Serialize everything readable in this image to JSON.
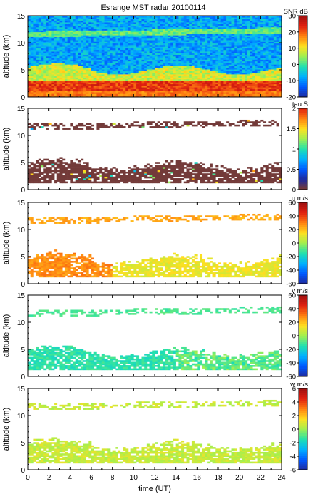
{
  "chart_data": {
    "type": "heatmap",
    "title": "Esrange MST radar 20100114",
    "xlabel": "time (UT)",
    "x_range": [
      0,
      24
    ],
    "x_ticks": [
      "0",
      "2",
      "4",
      "6",
      "8",
      "10",
      "12",
      "14",
      "16",
      "18",
      "20",
      "22",
      "24"
    ],
    "panels": [
      {
        "ylabel": "altitude (km)",
        "y_range": [
          0,
          15
        ],
        "y_ticks": [
          "0",
          "5",
          "10",
          "15"
        ],
        "colorbar_label": "SNR dB",
        "colorbar_range": [
          -20,
          30
        ],
        "colorbar_ticks": [
          "-20",
          "-10",
          "0",
          "10",
          "20",
          "30"
        ],
        "colorscale": [
          "#1f2a9c",
          "#0057ff",
          "#00b0ff",
          "#20e0b0",
          "#a0f050",
          "#ffe020",
          "#ff8010",
          "#e02010",
          "#a01010"
        ],
        "pattern": "snr"
      },
      {
        "ylabel": "altitude (km)",
        "y_range": [
          0,
          15
        ],
        "y_ticks": [
          "0",
          "5",
          "10",
          "15"
        ],
        "colorbar_label": "tau S",
        "colorbar_range": [
          0,
          2
        ],
        "colorbar_ticks": [
          "0",
          "0.5",
          "1",
          "1.5",
          "2"
        ],
        "colorscale": [
          "#7a3b30",
          "#1f2a9c",
          "#0057ff",
          "#00b0ff",
          "#20e0b0",
          "#a0f050",
          "#ffe020",
          "#ff8010",
          "#e02010"
        ],
        "pattern": "tau"
      },
      {
        "ylabel": "altitude (km)",
        "y_range": [
          0,
          15
        ],
        "y_ticks": [
          "0",
          "5",
          "10",
          "15"
        ],
        "colorbar_label": "u m/s",
        "colorbar_range": [
          -60,
          60
        ],
        "colorbar_ticks": [
          "-60",
          "-40",
          "-20",
          "0",
          "20",
          "40",
          "60"
        ],
        "colorscale": [
          "#1f2a9c",
          "#0057ff",
          "#00b0ff",
          "#20e0b0",
          "#a0f050",
          "#ffe020",
          "#ff8010",
          "#e02010",
          "#a01010"
        ],
        "pattern": "u"
      },
      {
        "ylabel": "altitude (km)",
        "y_range": [
          0,
          15
        ],
        "y_ticks": [
          "0",
          "5",
          "10",
          "15"
        ],
        "colorbar_label": "v m/s",
        "colorbar_range": [
          -60,
          60
        ],
        "colorbar_ticks": [
          "-60",
          "-40",
          "-20",
          "0",
          "20",
          "40",
          "60"
        ],
        "colorscale": [
          "#1f2a9c",
          "#0057ff",
          "#00b0ff",
          "#20e0b0",
          "#a0f050",
          "#ffe020",
          "#ff8010",
          "#e02010",
          "#a01010"
        ],
        "pattern": "v"
      },
      {
        "ylabel": "altitude (km)",
        "y_range": [
          0,
          15
        ],
        "y_ticks": [
          "0",
          "5",
          "10",
          "15"
        ],
        "colorbar_label": "w m/s",
        "colorbar_range": [
          -6,
          6
        ],
        "colorbar_ticks": [
          "-6",
          "-4",
          "-2",
          "0",
          "2",
          "4",
          "6"
        ],
        "colorscale": [
          "#1f2a9c",
          "#0057ff",
          "#00b0ff",
          "#20e0b0",
          "#a0f050",
          "#ffe020",
          "#ff8010",
          "#e02010",
          "#a01010"
        ],
        "pattern": "w"
      }
    ],
    "grid": false
  }
}
